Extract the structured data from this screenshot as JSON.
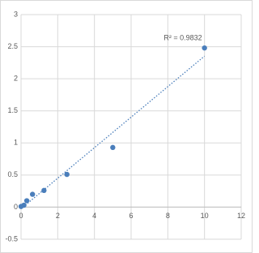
{
  "chart_data": {
    "type": "scatter",
    "x": [
      0,
      0.156,
      0.3125,
      0.625,
      1.25,
      2.5,
      5,
      10
    ],
    "values": [
      0.01,
      0.03,
      0.1,
      0.2,
      0.26,
      0.51,
      0.93,
      2.48
    ],
    "color": "#4a7ebb",
    "trendline": {
      "type": "linear",
      "label": "R² = 0.9832",
      "color": "#4a7ebb"
    },
    "xlim": [
      0,
      12
    ],
    "xticks": [
      0,
      2,
      4,
      6,
      8,
      10,
      12
    ],
    "ylim": [
      -0.5,
      3
    ],
    "yticks": [
      -0.5,
      0,
      0.5,
      1,
      1.5,
      2,
      2.5,
      3
    ],
    "grid": true
  }
}
